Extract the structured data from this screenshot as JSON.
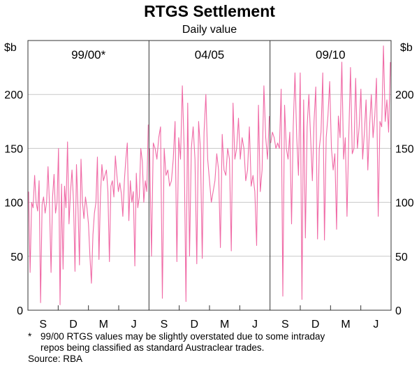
{
  "chart_data": {
    "type": "line",
    "title": "RTGS Settlement",
    "subtitle": "Daily value",
    "y_unit_left": "$b",
    "y_unit_right": "$b",
    "ylim": [
      0,
      250
    ],
    "yticks": [
      0,
      50,
      100,
      150,
      200
    ],
    "grid": true,
    "line_color": "#f06aa6",
    "panels": [
      {
        "label": "99/00*",
        "xticks": [
          "S",
          "D",
          "M",
          "J"
        ],
        "values": [
          110,
          35,
          100,
          95,
          125,
          100,
          92,
          120,
          7,
          98,
          105,
          90,
          100,
          133,
          95,
          35,
          105,
          126,
          90,
          100,
          150,
          5,
          117,
          38,
          115,
          95,
          156,
          80,
          110,
          130,
          100,
          36,
          135,
          95,
          42,
          140,
          100,
          85,
          105,
          95,
          80,
          50,
          25,
          70,
          90,
          100,
          142,
          47,
          105,
          135,
          120,
          125,
          130,
          110,
          45,
          115,
          120,
          105,
          143,
          125,
          110,
          118,
          108,
          87,
          120,
          140,
          155,
          83,
          120,
          100,
          110,
          41,
          127,
          95,
          105,
          150,
          138,
          100,
          120,
          110,
          172
        ]
      },
      {
        "label": "04/05",
        "xticks": [
          "S",
          "D",
          "M",
          "J"
        ],
        "values": [
          150,
          50,
          155,
          150,
          140,
          160,
          170,
          11,
          150,
          125,
          130,
          115,
          120,
          140,
          175,
          45,
          160,
          140,
          208,
          150,
          8,
          192,
          50,
          150,
          170,
          140,
          43,
          175,
          150,
          48,
          165,
          200,
          140,
          120,
          100,
          110,
          120,
          145,
          130,
          58,
          163,
          130,
          125,
          150,
          140,
          55,
          192,
          140,
          150,
          178,
          140,
          160,
          150,
          120,
          130,
          170,
          115,
          125,
          110,
          60,
          190,
          110,
          130,
          208,
          160,
          140,
          180
        ]
      },
      {
        "label": "09/10",
        "xticks": [
          "S",
          "D",
          "M",
          "J"
        ],
        "values": [
          155,
          165,
          160,
          150,
          155,
          150,
          205,
          13,
          190,
          150,
          140,
          165,
          80,
          170,
          220,
          160,
          125,
          220,
          10,
          195,
          67,
          170,
          200,
          160,
          120,
          175,
          207,
          66,
          150,
          165,
          220,
          65,
          160,
          180,
          212,
          150,
          130,
          145,
          75,
          180,
          160,
          230,
          140,
          160,
          87,
          160,
          225,
          145,
          150,
          215,
          150,
          170,
          205,
          140,
          165,
          195,
          130,
          170,
          200,
          160,
          180,
          215,
          87,
          175,
          170,
          245,
          175,
          195,
          165,
          230
        ]
      }
    ]
  },
  "footnote": {
    "marker": "*",
    "line1": "99/00 RTGS values may be slightly overstated due to some intraday",
    "line2": "repos being classified as standard Austraclear trades."
  },
  "source": "Source: RBA"
}
